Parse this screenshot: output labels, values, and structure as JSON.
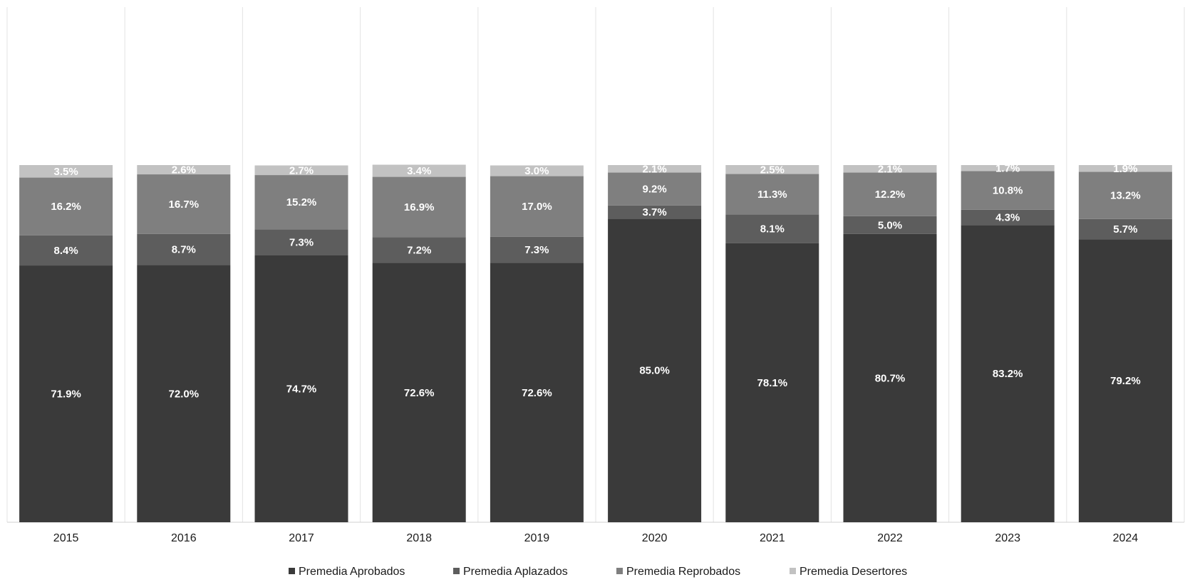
{
  "chart_data": {
    "type": "bar",
    "stacked": true,
    "categories": [
      "2015",
      "2016",
      "2017",
      "2018",
      "2019",
      "2020",
      "2021",
      "2022",
      "2023",
      "2024"
    ],
    "series": [
      {
        "name": "Premedia Aprobados",
        "color": "#3a3a3a",
        "values": [
          71.9,
          72.0,
          74.7,
          72.6,
          72.6,
          85.0,
          78.1,
          80.7,
          83.2,
          79.2
        ],
        "labels": [
          "71.9%",
          "72.0%",
          "74.7%",
          "72.6%",
          "72.6%",
          "85.0%",
          "78.1%",
          "80.7%",
          "83.2%",
          "79.2%"
        ]
      },
      {
        "name": "Premedia Aplazados",
        "color": "#5d5d5d",
        "values": [
          8.4,
          8.7,
          7.3,
          7.2,
          7.3,
          3.7,
          8.1,
          5.0,
          4.3,
          5.7
        ],
        "labels": [
          "8.4%",
          "8.7%",
          "7.3%",
          "7.2%",
          "7.3%",
          "3.7%",
          "8.1%",
          "5.0%",
          "4.3%",
          "5.7%"
        ]
      },
      {
        "name": "Premedia Reprobados",
        "color": "#7f7f7f",
        "values": [
          16.2,
          16.7,
          15.2,
          16.9,
          17.0,
          9.2,
          11.3,
          12.2,
          10.8,
          13.2
        ],
        "labels": [
          "16.2%",
          "16.7%",
          "15.2%",
          "16.9%",
          "17.0%",
          "9.2%",
          "11.3%",
          "12.2%",
          "10.8%",
          "13.2%"
        ]
      },
      {
        "name": "Premedia Desertores",
        "color": "#c2c2c2",
        "values": [
          3.5,
          2.6,
          2.7,
          3.4,
          3.0,
          2.1,
          2.5,
          2.1,
          1.7,
          1.9
        ],
        "labels": [
          "3.5%",
          "2.6%",
          "2.7%",
          "3.4%",
          "3.0%",
          "2.1%",
          "2.5%",
          "2.1%",
          "1.7%",
          "1.9%"
        ]
      }
    ],
    "ylim": [
      0,
      120
    ],
    "grid": "vertical category separators",
    "legend_position": "bottom"
  }
}
